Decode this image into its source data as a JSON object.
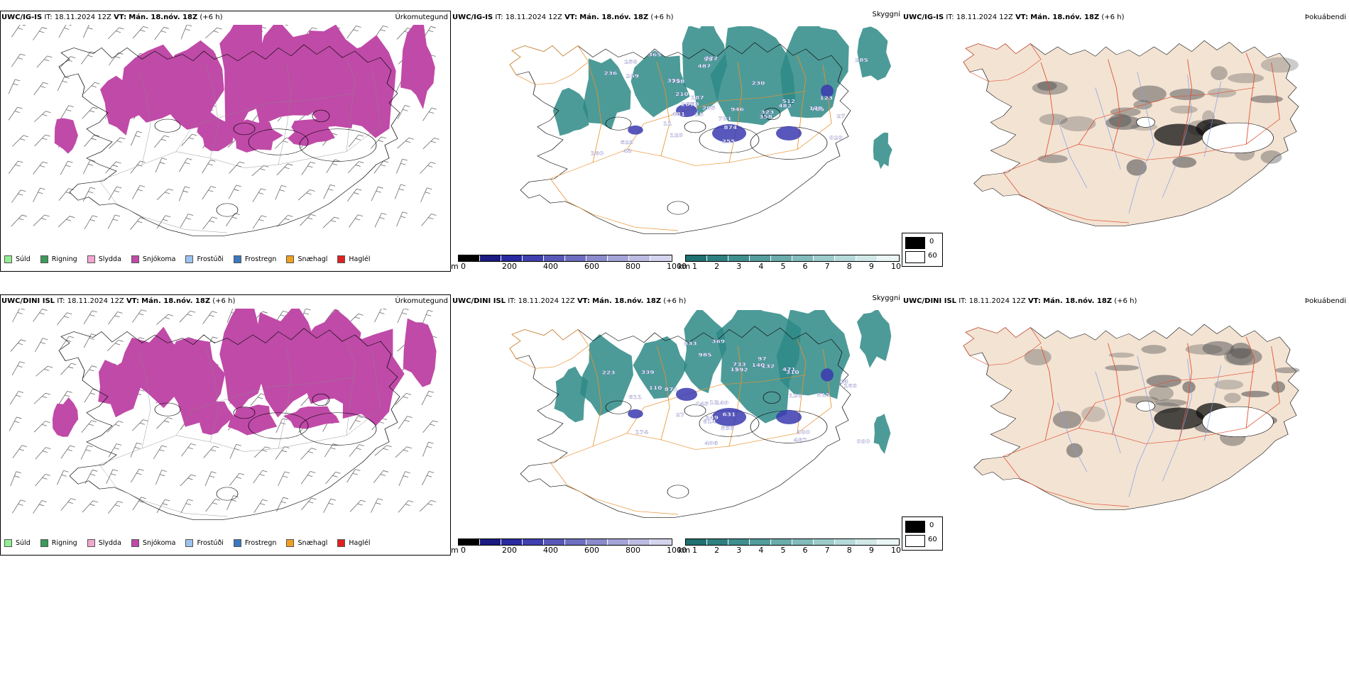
{
  "rows": [
    {
      "model": "UWC/IG-IS",
      "it_label": "IT:",
      "it_value": "18.11.2024 12Z",
      "vt_label": "VT:",
      "vt_value": "Mán. 18.nóv. 18Z",
      "offset": "(+6 h)",
      "titles": [
        "Úrkomutegund",
        "Skyggni",
        "Þokuábendi"
      ],
      "cloud_labels": [
        "722",
        "482",
        "623",
        "929",
        "236",
        "27",
        "874",
        "99",
        "258",
        "205",
        "285",
        "355",
        "269",
        "365",
        "765",
        "781",
        "758",
        "230",
        "512",
        "358",
        "487",
        "481",
        "160",
        "43",
        "255",
        "210",
        "11",
        "123",
        "15",
        "129",
        "187",
        "267",
        "323",
        "178",
        "946",
        "963"
      ]
    },
    {
      "model": "UWC/DINI ISL",
      "it_label": "IT:",
      "it_value": "18.11.2024 12Z",
      "vt_label": "VT:",
      "vt_value": "Mán. 18.nóv. 18Z",
      "offset": "(+6 h)",
      "titles": [
        "Úrkomutegund",
        "Skyggni",
        "Þokuábendi"
      ],
      "cloud_labels": [
        "992",
        "945",
        "930",
        "871",
        "536",
        "833",
        "614",
        "471",
        "132",
        "349",
        "631",
        "97",
        "310",
        "406",
        "149",
        "380",
        "27",
        "515",
        "110",
        "733",
        "339",
        "985",
        "140",
        "13",
        "223",
        "163",
        "15",
        "467",
        "611",
        "174",
        "126",
        "14",
        "369"
      ]
    }
  ],
  "precip_legend": [
    {
      "label": "Súld",
      "color": "#90ee90"
    },
    {
      "label": "Rigning",
      "color": "#3c9a5a"
    },
    {
      "label": "Slydda",
      "color": "#f2a6d0"
    },
    {
      "label": "Snjókoma",
      "color": "#c04aa8"
    },
    {
      "label": "Frostúði",
      "color": "#9cc3ee"
    },
    {
      "label": "Frostregn",
      "color": "#3a78c0"
    },
    {
      "label": "Snæhagl",
      "color": "#f0a020"
    },
    {
      "label": "Haglél",
      "color": "#e02020"
    }
  ],
  "cloud_base_bar": {
    "unit": "m",
    "ticks": [
      "0",
      "200",
      "400",
      "600",
      "800",
      "1000"
    ],
    "colors": [
      "#000000",
      "#1a1a80",
      "#2a2aa0",
      "#4040b0",
      "#5858b8",
      "#6e6ec0",
      "#8a8acc",
      "#a4a4d8",
      "#bcbce2",
      "#d4d4ee"
    ]
  },
  "visibility_bar": {
    "unit": "km",
    "ticks": [
      "1",
      "2",
      "3",
      "4",
      "5",
      "6",
      "7",
      "8",
      "9",
      "10"
    ],
    "colors": [
      "#1f7070",
      "#2e8080",
      "#3f8f8f",
      "#539d9d",
      "#6aacac",
      "#82bbbb",
      "#9ccbcb",
      "#b6dada",
      "#d0e8e8",
      "#eaf5f5"
    ]
  },
  "fog_bar": {
    "ticks": [
      "0",
      "60"
    ]
  },
  "colors": {
    "snow": "#c04aa8",
    "land_fog": "#f3e3d3",
    "road": "#e05030",
    "river": "#7f9fe8",
    "vis_teal": "#2e8a86",
    "cloud_blue": "#3a3ab0",
    "orange_road": "#e8902e"
  }
}
